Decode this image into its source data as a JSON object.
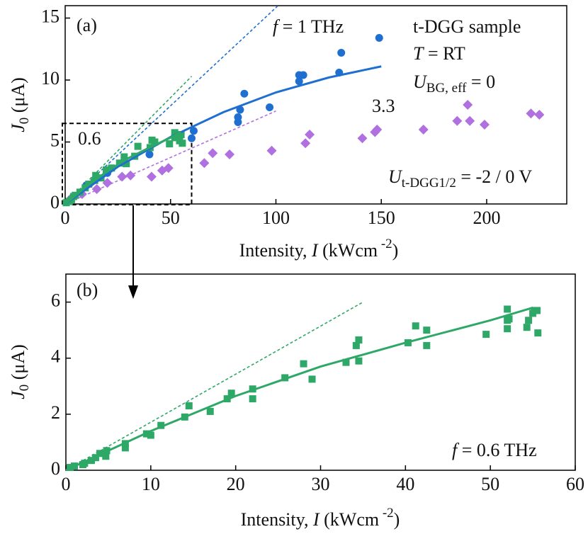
{
  "chart_data": [
    {
      "type": "scatter",
      "xlim": [
        0,
        238
      ],
      "ylim": [
        0,
        16
      ],
      "xticks": [
        0,
        50,
        100,
        150,
        200
      ],
      "yticks": [
        0,
        5,
        10,
        15
      ],
      "x_label": [
        {
          "text": "Intensity,  "
        },
        {
          "text": "I",
          "style": "italic"
        },
        {
          "text": " (kWcm"
        },
        {
          "text": " -2",
          "style": "sup"
        },
        {
          "text": ")"
        }
      ],
      "y_label": [
        {
          "text": "J",
          "style": "italic"
        },
        {
          "text": "0",
          "style": "sub"
        },
        {
          "text": " (μA)"
        }
      ],
      "inset_region": {
        "xlim": [
          0,
          60
        ],
        "ylim": [
          0,
          6.5
        ]
      },
      "annotations": [
        {
          "pieces": [
            {
              "text": "(a)"
            }
          ]
        },
        {
          "pieces": [
            {
              "text": "f",
              "style": "italic"
            },
            {
              "text": " = 1 THz"
            }
          ],
          "color": "#1f6fd1"
        },
        {
          "pieces": [
            {
              "text": "t-DGG sample"
            }
          ]
        },
        {
          "pieces": [
            {
              "text": "T",
              "style": "italic"
            },
            {
              "text": " = RT"
            }
          ]
        },
        {
          "pieces": [
            {
              "text": "U",
              "style": "italic"
            },
            {
              "text": "BG, eff",
              "style": "sub"
            },
            {
              "text": " = 0"
            }
          ]
        },
        {
          "pieces": [
            {
              "text": "3.3"
            }
          ],
          "color": "#b070e0"
        },
        {
          "pieces": [
            {
              "text": "0.6"
            }
          ]
        },
        {
          "pieces": [
            {
              "text": "U",
              "style": "italic"
            },
            {
              "text": "t-DGG1/2",
              "style": "sub"
            },
            {
              "text": " = -2 / 0 V"
            }
          ]
        }
      ],
      "series": [
        {
          "mode": "line",
          "dash": true,
          "color": "#1f6fd1",
          "x": [
            0,
            101
          ],
          "values": [
            0,
            16
          ]
        },
        {
          "mode": "line",
          "dash": true,
          "color": "#2ea866",
          "x": [
            0,
            60
          ],
          "values": [
            0,
            10.3
          ]
        },
        {
          "mode": "line",
          "dash": true,
          "color": "#b070e0",
          "x": [
            0,
            100
          ],
          "values": [
            0,
            7.5
          ]
        },
        {
          "mode": "markers",
          "marker": "diamond",
          "color": "#b070e0",
          "x": [
            3,
            8,
            15,
            20,
            27,
            31,
            41,
            46,
            49,
            66,
            70,
            78,
            98,
            114,
            116,
            141,
            147,
            148,
            170,
            186,
            191,
            192,
            199,
            221,
            225
          ],
          "values": [
            0.5,
            0.8,
            1.2,
            1.7,
            2.2,
            2.3,
            2.2,
            2.7,
            2.9,
            3.3,
            4.1,
            4.0,
            4.3,
            4.9,
            5.6,
            5.3,
            5.8,
            6.0,
            6.0,
            6.7,
            8.0,
            6.7,
            6.4,
            7.3,
            7.2
          ]
        },
        {
          "mode": "markers",
          "marker": "circle",
          "color": "#1f6fd1",
          "x": [
            10,
            20,
            40,
            60,
            61,
            82,
            82,
            83,
            85,
            97,
            111,
            111,
            113,
            130,
            131,
            149
          ],
          "values": [
            1.5,
            2.5,
            4.0,
            5.3,
            5.9,
            6.6,
            7.0,
            7.6,
            8.9,
            7.8,
            9.9,
            10.4,
            10.4,
            10.6,
            12.2,
            13.4
          ]
        },
        {
          "mode": "markers",
          "marker": "square",
          "color": "#2ea866",
          "x": [
            0.5,
            2,
            3,
            4,
            4.8,
            7,
            9.5,
            11.2,
            14,
            14.5,
            17,
            19.5,
            22,
            25.8,
            28,
            29,
            33,
            34.5,
            40.3,
            41.2,
            42.5,
            49.5,
            52,
            52,
            54.3,
            55,
            55.6
          ],
          "values": [
            0.1,
            0.2,
            0.35,
            0.6,
            0.7,
            0.95,
            1.3,
            1.6,
            1.9,
            2.3,
            2.1,
            2.75,
            2.9,
            3.3,
            3.8,
            3.25,
            3.85,
            4.65,
            4.55,
            5.15,
            5.0,
            4.85,
            5.35,
            5.75,
            5.1,
            5.6,
            4.9
          ]
        },
        {
          "mode": "line",
          "dash": false,
          "color": "#1f6fd1",
          "x": [
            0,
            25,
            50,
            75,
            100,
            125,
            150
          ],
          "values": [
            0,
            3.0,
            5.4,
            7.4,
            9.0,
            10.2,
            11.1
          ]
        },
        {
          "mode": "line",
          "dash": false,
          "color": "#2ea866",
          "x": [
            0,
            10,
            20,
            30,
            40,
            50,
            55
          ],
          "values": [
            0,
            1.4,
            2.65,
            3.7,
            4.55,
            5.35,
            5.8
          ]
        }
      ]
    },
    {
      "type": "scatter",
      "xlim": [
        0,
        60
      ],
      "ylim": [
        0,
        7
      ],
      "xticks": [
        0,
        10,
        20,
        30,
        40,
        50,
        60
      ],
      "yticks": [
        0,
        2,
        4,
        6
      ],
      "x_label": [
        {
          "text": "Intensity,  "
        },
        {
          "text": "I",
          "style": "italic"
        },
        {
          "text": " (kWcm"
        },
        {
          "text": " -2",
          "style": "sup"
        },
        {
          "text": ")"
        }
      ],
      "y_label": [
        {
          "text": "J",
          "style": "italic"
        },
        {
          "text": "0",
          "style": "sub"
        },
        {
          "text": " (μA)"
        }
      ],
      "annotations": [
        {
          "pieces": [
            {
              "text": "(b)"
            }
          ]
        },
        {
          "pieces": [
            {
              "text": "f",
              "style": "italic"
            },
            {
              "text": " = 0.6 THz"
            }
          ]
        }
      ],
      "series": [
        {
          "mode": "line",
          "dash": true,
          "color": "#2ea866",
          "x": [
            0,
            35
          ],
          "values": [
            0,
            6
          ]
        },
        {
          "mode": "markers",
          "marker": "square",
          "color": "#2ea866",
          "x": [
            0.5,
            1,
            2,
            2.2,
            3,
            3.5,
            4,
            4.7,
            4.8,
            7,
            7,
            9.5,
            10,
            11.2,
            14,
            14.5,
            17,
            19,
            19.5,
            22,
            22,
            25.8,
            28,
            29,
            33,
            34.2,
            34.5,
            34.5,
            40.3,
            41.2,
            42.5,
            42.5,
            49.5,
            52,
            52,
            52,
            52.2,
            54.3,
            54.5,
            55,
            55.2,
            55.6,
            55.5
          ],
          "values": [
            0.1,
            0.15,
            0.2,
            0.25,
            0.35,
            0.45,
            0.6,
            0.5,
            0.7,
            0.8,
            0.95,
            1.3,
            1.25,
            1.6,
            1.9,
            2.3,
            2.1,
            2.55,
            2.75,
            2.55,
            2.9,
            3.3,
            3.8,
            3.25,
            3.85,
            4.45,
            4.65,
            3.9,
            4.55,
            5.15,
            5.0,
            4.45,
            4.85,
            5.05,
            5.35,
            5.75,
            5.4,
            5.1,
            5.35,
            5.6,
            5.7,
            4.9,
            5.7
          ]
        },
        {
          "mode": "line",
          "dash": false,
          "color": "#2ea866",
          "x": [
            0,
            10,
            20,
            30,
            40,
            50,
            55
          ],
          "values": [
            0,
            1.4,
            2.65,
            3.7,
            4.55,
            5.35,
            5.8
          ]
        }
      ]
    }
  ]
}
